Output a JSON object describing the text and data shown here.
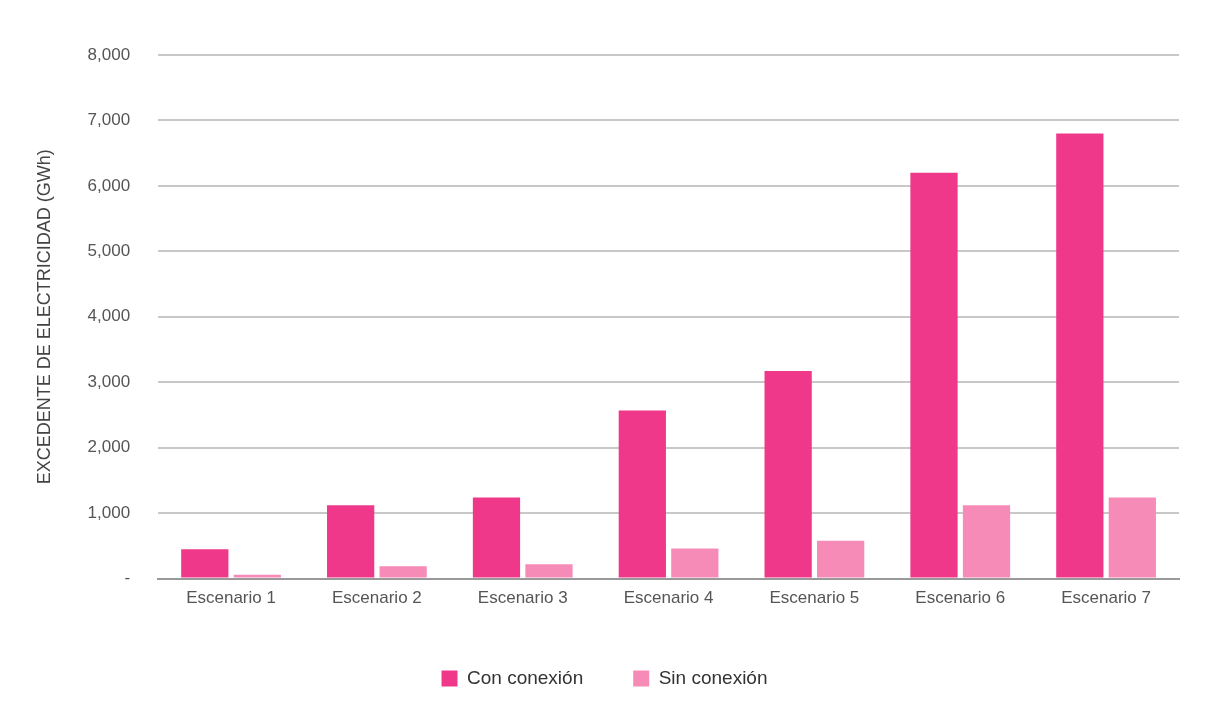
{
  "chart_data": {
    "type": "bar",
    "ylabel": "EXCEDENTE DE ELECTRICIDAD (GWh)",
    "categories": [
      "Escenario 1",
      "Escenario 2",
      "Escenario 3",
      "Escenario 4",
      "Escenario 5",
      "Escenario 6",
      "Escenario 7"
    ],
    "series": [
      {
        "name": "Con conexión",
        "color": "#f0388a",
        "values": [
          450,
          1120,
          1240,
          2570,
          3170,
          6200,
          6800
        ]
      },
      {
        "name": "Sin conexión",
        "color": "#f78bb8",
        "values": [
          60,
          190,
          220,
          460,
          580,
          1120,
          1240
        ]
      }
    ],
    "ylim": [
      0,
      8000
    ],
    "yticks": [
      {
        "value": 0,
        "label": "-"
      },
      {
        "value": 1000,
        "label": "1,000"
      },
      {
        "value": 2000,
        "label": "2,000"
      },
      {
        "value": 3000,
        "label": "3,000"
      },
      {
        "value": 4000,
        "label": "4,000"
      },
      {
        "value": 5000,
        "label": "5,000"
      },
      {
        "value": 6000,
        "label": "6,000"
      },
      {
        "value": 7000,
        "label": "7,000"
      },
      {
        "value": 8000,
        "label": "8,000"
      }
    ],
    "grid": "y",
    "legend": "bottom"
  }
}
